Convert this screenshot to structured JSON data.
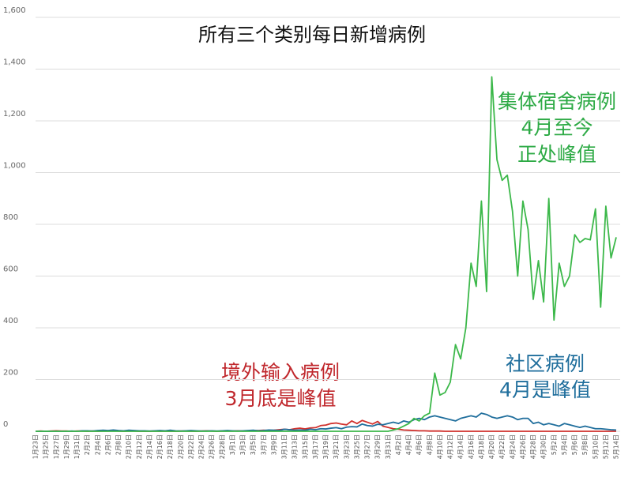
{
  "chart_data": {
    "type": "line",
    "title": "所有三个类别每日新增病例",
    "categories": [
      "1月23日",
      null,
      "1月25日",
      null,
      "1月27日",
      null,
      "1月29日",
      null,
      "1月31日",
      null,
      "2月2日",
      null,
      "2月4日",
      null,
      "2月6日",
      null,
      "2月8日",
      null,
      "2月10日",
      null,
      "2月12日",
      null,
      "2月14日",
      null,
      "2月16日",
      null,
      "2月18日",
      null,
      "2月20日",
      null,
      "2月22日",
      null,
      "2月24日",
      null,
      "2月26日",
      null,
      "2月28日",
      null,
      "3月1日",
      null,
      "3月3日",
      null,
      "3月5日",
      null,
      "3月7日",
      null,
      "3月9日",
      null,
      "3月11日",
      null,
      "3月13日",
      null,
      "3月15日",
      null,
      "3月17日",
      null,
      "3月19日",
      null,
      "3月21日",
      null,
      "3月23日",
      null,
      "3月25日",
      null,
      "3月27日",
      null,
      "3月29日",
      null,
      "3月31日",
      null,
      "4月2日",
      null,
      "4月4日",
      null,
      "4月6日",
      null,
      "4月8日",
      null,
      "4月10日",
      null,
      "4月12日",
      null,
      "4月14日",
      null,
      "4月16日",
      null,
      "4月18日",
      null,
      "4月20日",
      null,
      "4月22日",
      null,
      "4月24日",
      null,
      "4月26日",
      null,
      "4月28日",
      null,
      "4月30日",
      null,
      "5月2日",
      null,
      "5月4日",
      null,
      "5月6日",
      null,
      "5月8日",
      null,
      "5月10日",
      null,
      "5月12日",
      null,
      "5月14日"
    ],
    "series": [
      {
        "name": "境外输入病例",
        "color": "#d0312d",
        "values": [
          0,
          1,
          0,
          1,
          2,
          1,
          1,
          0,
          1,
          1,
          0,
          1,
          0,
          1,
          1,
          2,
          1,
          0,
          1,
          1,
          0,
          0,
          0,
          1,
          0,
          1,
          0,
          0,
          1,
          1,
          0,
          0,
          1,
          2,
          1,
          0,
          1,
          1,
          1,
          2,
          1,
          2,
          3,
          3,
          4,
          3,
          4,
          6,
          8,
          6,
          10,
          12,
          9,
          13,
          14,
          22,
          24,
          30,
          32,
          28,
          25,
          40,
          30,
          42,
          35,
          28,
          38,
          20,
          15,
          10,
          8,
          5,
          4,
          3,
          2,
          2,
          1,
          1,
          1,
          0,
          0,
          0,
          0,
          0,
          0,
          0,
          0,
          0,
          0,
          0,
          0,
          0,
          0,
          0,
          0,
          0,
          0,
          0,
          0,
          0,
          0,
          0,
          0,
          0,
          0,
          0,
          0,
          0,
          0,
          0,
          0,
          0,
          0
        ]
      },
      {
        "name": "社区病例",
        "color": "#1f6e9c",
        "values": [
          0,
          0,
          0,
          0,
          0,
          0,
          0,
          1,
          0,
          2,
          2,
          1,
          3,
          4,
          3,
          5,
          3,
          2,
          4,
          3,
          2,
          2,
          1,
          2,
          3,
          2,
          4,
          2,
          1,
          2,
          3,
          2,
          1,
          1,
          2,
          1,
          2,
          3,
          2,
          1,
          2,
          3,
          4,
          2,
          3,
          5,
          4,
          3,
          8,
          6,
          4,
          5,
          4,
          8,
          6,
          10,
          9,
          12,
          14,
          10,
          16,
          18,
          17,
          28,
          22,
          20,
          27,
          25,
          30,
          35,
          30,
          40,
          35,
          45,
          50,
          45,
          55,
          60,
          55,
          50,
          45,
          40,
          50,
          55,
          60,
          55,
          70,
          65,
          55,
          50,
          55,
          60,
          55,
          45,
          50,
          50,
          30,
          35,
          25,
          30,
          25,
          20,
          30,
          25,
          20,
          15,
          20,
          15,
          10,
          10,
          8,
          6,
          5
        ]
      },
      {
        "name": "集体宿舍病例",
        "color": "#3cb84a",
        "values": [
          0,
          0,
          0,
          0,
          0,
          0,
          0,
          0,
          0,
          0,
          0,
          0,
          0,
          0,
          0,
          0,
          0,
          0,
          0,
          0,
          0,
          0,
          0,
          0,
          0,
          0,
          0,
          0,
          0,
          0,
          0,
          0,
          0,
          0,
          0,
          0,
          0,
          0,
          0,
          0,
          0,
          0,
          0,
          0,
          0,
          0,
          0,
          0,
          0,
          0,
          0,
          0,
          0,
          0,
          0,
          0,
          0,
          0,
          0,
          0,
          0,
          0,
          0,
          0,
          0,
          0,
          0,
          0,
          0,
          5,
          10,
          20,
          30,
          50,
          40,
          60,
          70,
          225,
          140,
          150,
          190,
          335,
          280,
          400,
          650,
          560,
          890,
          540,
          1370,
          1050,
          970,
          990,
          850,
          600,
          890,
          780,
          510,
          660,
          500,
          900,
          430,
          650,
          560,
          600,
          760,
          730,
          745,
          740,
          860,
          480,
          870,
          670,
          750
        ]
      }
    ],
    "annotations": [
      "3月底是峰值",
      "4月是峰值",
      "4月至今",
      "正处峰值"
    ],
    "ylim": [
      0,
      1600
    ],
    "yticks": [
      0,
      200,
      400,
      600,
      800,
      {
        "value": 1000,
        "label": "1,000"
      },
      {
        "value": 1200,
        "label": "1,200"
      },
      {
        "value": 1400,
        "label": "1,400"
      },
      {
        "value": 1600,
        "label": "1,600"
      }
    ],
    "grid": true
  }
}
